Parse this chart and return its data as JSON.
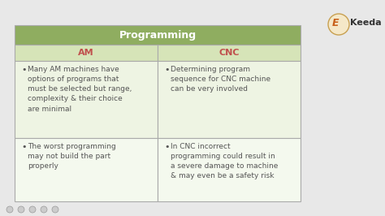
{
  "title": "Programming",
  "title_bg": "#8fad60",
  "title_color": "#ffffff",
  "header_bg": "#d6e4b8",
  "header_am": "AM",
  "header_cnc": "CNC",
  "header_color": "#c0504d",
  "row1_am": "Many AM machines have\noptions of programs that\nmust be selected but range,\ncomplexity & their choice\nare minimal",
  "row1_cnc": "Determining program\nsequence for CNC machine\ncan be very involved",
  "row2_am": "The worst programming\nmay not build the part\nproperly",
  "row2_cnc": "In CNC incorrect\nprogramming could result in\na severe damage to machine\n& may even be a safety risk",
  "cell_bg_light": "#eef4e3",
  "cell_bg_lighter": "#f4f9ee",
  "text_color": "#555555",
  "border_color": "#bbbbbb",
  "bg_color": "#e8e8e8",
  "fig_width": 4.74,
  "fig_height": 2.66,
  "dpi": 100
}
